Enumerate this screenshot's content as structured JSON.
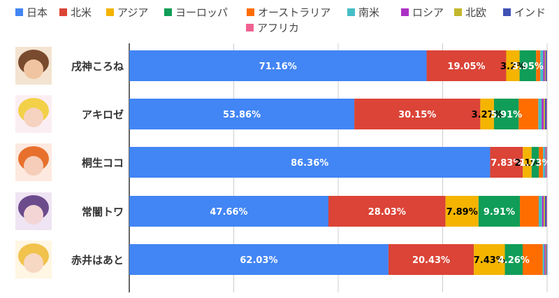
{
  "chart_data": {
    "type": "bar",
    "orientation": "horizontal",
    "stacked": "percent",
    "legend_position": "top",
    "grid": true,
    "xlim": [
      0,
      100
    ],
    "categories": [
      "戌神ころね",
      "アキロゼ",
      "桐生ココ",
      "常闇トワ",
      "赤井はあと"
    ],
    "series": [
      {
        "name": "日本",
        "color": "#4285f4",
        "label_color": "#ffffff",
        "values": [
          71.16,
          53.86,
          86.36,
          47.66,
          62.03
        ]
      },
      {
        "name": "北米",
        "color": "#db4437",
        "label_color": "#ffffff",
        "values": [
          19.05,
          30.15,
          7.83,
          28.03,
          20.43
        ]
      },
      {
        "name": "アジア",
        "color": "#f4b400",
        "label_color": "#000000",
        "values": [
          3.2,
          3.27,
          2.1,
          7.89,
          7.43
        ]
      },
      {
        "name": "ヨーロッパ",
        "color": "#0f9d58",
        "label_color": "#ffffff",
        "values": [
          3.95,
          5.91,
          1.73,
          9.91,
          4.26
        ]
      },
      {
        "name": "オーストラリア",
        "color": "#ff6d01",
        "label_color": "#ffffff",
        "values": [
          1.0,
          4.7,
          1.0,
          4.5,
          4.8
        ]
      },
      {
        "name": "南米",
        "color": "#46bdc6",
        "label_color": "#ffffff",
        "values": [
          0.7,
          0.8,
          0.5,
          0.8,
          0.4
        ]
      },
      {
        "name": "ロシア",
        "color": "#ab30c4",
        "label_color": "#ffffff",
        "values": [
          0.4,
          0.5,
          0.2,
          0.4,
          0.3
        ]
      },
      {
        "name": "北欧",
        "color": "#c2b72c",
        "label_color": "#ffffff",
        "values": [
          0.2,
          0.3,
          0.1,
          0.3,
          0.2
        ]
      },
      {
        "name": "インド",
        "color": "#3f51b5",
        "label_color": "#ffffff",
        "values": [
          0.3,
          0.4,
          0.1,
          0.4,
          0.2
        ]
      },
      {
        "name": "アフリカ",
        "color": "#f06292",
        "label_color": "#ffffff",
        "values": [
          0.04,
          0.11,
          0.08,
          0.11,
          0.0
        ]
      }
    ],
    "data_labels": [
      [
        "71.16%",
        "19.05%",
        "3.2%",
        "3.95%"
      ],
      [
        "53.86%",
        "30.15%",
        "3.27%",
        "5.91%"
      ],
      [
        "86.36%",
        "7.83%",
        "2.1%",
        "1.73%"
      ],
      [
        "47.66%",
        "28.03%",
        "7.89%",
        "9.91%"
      ],
      [
        "62.03%",
        "20.43%",
        "7.43%",
        "4.26%"
      ]
    ]
  }
}
